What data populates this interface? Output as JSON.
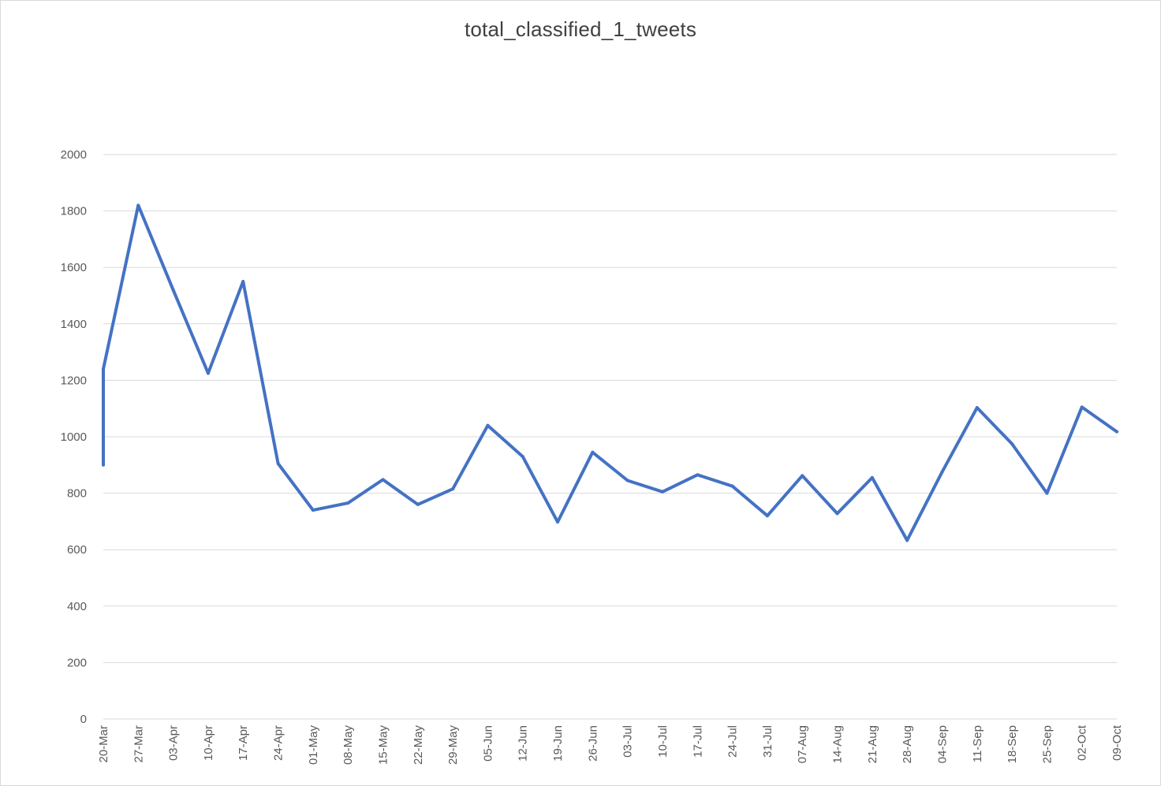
{
  "chart_data": {
    "type": "line",
    "title": "total_classified_1_tweets",
    "xlabel": "",
    "ylabel": "",
    "ylim": [
      0,
      2000
    ],
    "y_ticks": [
      0,
      200,
      400,
      600,
      800,
      1000,
      1200,
      1400,
      1600,
      1800,
      2000
    ],
    "gridlines": true,
    "legend": "none",
    "line_color": "#4472c4",
    "categories": [
      "20-Mar",
      "27-Mar",
      "03-Apr",
      "10-Apr",
      "17-Apr",
      "24-Apr",
      "01-May",
      "08-May",
      "15-May",
      "22-May",
      "29-May",
      "05-Jun",
      "12-Jun",
      "19-Jun",
      "26-Jun",
      "03-Jul",
      "10-Jul",
      "17-Jul",
      "24-Jul",
      "31-Jul",
      "07-Aug",
      "14-Aug",
      "21-Aug",
      "28-Aug",
      "04-Sep",
      "11-Sep",
      "18-Sep",
      "25-Sep",
      "02-Oct",
      "09-Oct"
    ],
    "points": [
      {
        "x": "20-Mar",
        "y": 900
      },
      {
        "x": "20-Mar",
        "y": 1240
      },
      {
        "x": "27-Mar",
        "y": 1820
      },
      {
        "x": "03-Apr",
        "y": 1520
      },
      {
        "x": "10-Apr",
        "y": 1225
      },
      {
        "x": "17-Apr",
        "y": 1550
      },
      {
        "x": "24-Apr",
        "y": 905
      },
      {
        "x": "01-May",
        "y": 740
      },
      {
        "x": "08-May",
        "y": 765
      },
      {
        "x": "15-May",
        "y": 848
      },
      {
        "x": "22-May",
        "y": 760
      },
      {
        "x": "29-May",
        "y": 815
      },
      {
        "x": "05-Jun",
        "y": 1040
      },
      {
        "x": "12-Jun",
        "y": 930
      },
      {
        "x": "19-Jun",
        "y": 698
      },
      {
        "x": "26-Jun",
        "y": 945
      },
      {
        "x": "03-Jul",
        "y": 845
      },
      {
        "x": "10-Jul",
        "y": 805
      },
      {
        "x": "17-Jul",
        "y": 865
      },
      {
        "x": "24-Jul",
        "y": 825
      },
      {
        "x": "31-Jul",
        "y": 720
      },
      {
        "x": "07-Aug",
        "y": 862
      },
      {
        "x": "14-Aug",
        "y": 728
      },
      {
        "x": "21-Aug",
        "y": 855
      },
      {
        "x": "28-Aug",
        "y": 633
      },
      {
        "x": "04-Sep",
        "y": 875
      },
      {
        "x": "11-Sep",
        "y": 1103
      },
      {
        "x": "18-Sep",
        "y": 975
      },
      {
        "x": "25-Sep",
        "y": 800
      },
      {
        "x": "02-Oct",
        "y": 1105
      },
      {
        "x": "09-Oct",
        "y": 1018
      }
    ]
  }
}
